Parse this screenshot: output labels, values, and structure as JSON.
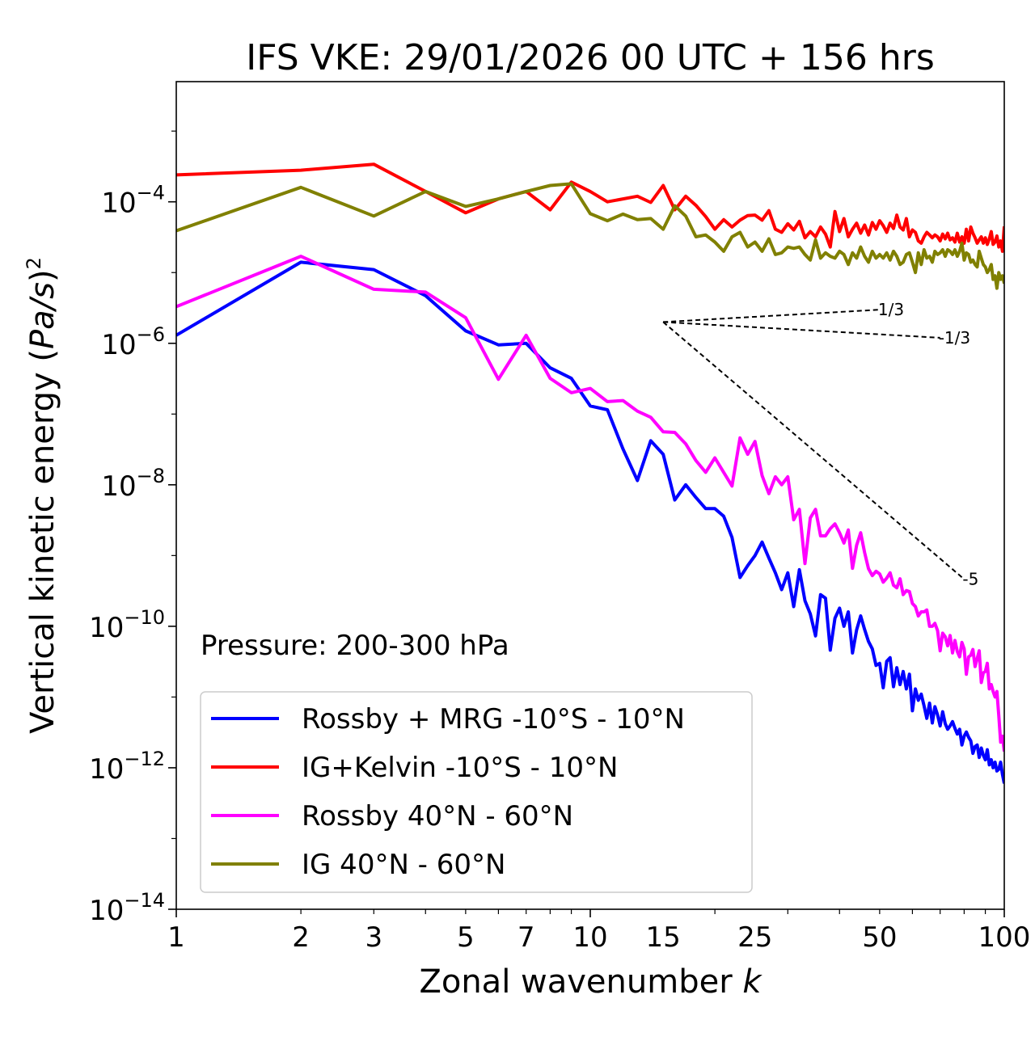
{
  "chart_data": {
    "type": "line",
    "title": "IFS VKE: 29/01/2026 00 UTC + 156 hrs",
    "xlabel_text": "Zonal wavenumber ",
    "xlabel_var": "k",
    "ylabel_text": "Vertical kinetic energy (",
    "ylabel_var": "Pa/s",
    "ylabel_close": ")",
    "ylabel_sup": "2",
    "xscale": "log",
    "yscale": "log",
    "xlim": [
      1,
      100
    ],
    "ylim": [
      1e-14,
      0.005
    ],
    "x_ticks": [
      {
        "value": 1,
        "label": "1"
      },
      {
        "value": 2,
        "label": "2"
      },
      {
        "value": 3,
        "label": "3"
      },
      {
        "value": 5,
        "label": "5"
      },
      {
        "value": 7,
        "label": "7"
      },
      {
        "value": 10,
        "label": "10"
      },
      {
        "value": 15,
        "label": "15"
      },
      {
        "value": 25,
        "label": "25"
      },
      {
        "value": 50,
        "label": "50"
      },
      {
        "value": 100,
        "label": "100"
      }
    ],
    "y_ticks": [
      {
        "exp": -4,
        "base": "10",
        "sup": "−4"
      },
      {
        "exp": -6,
        "base": "10",
        "sup": "−6"
      },
      {
        "exp": -8,
        "base": "10",
        "sup": "−8"
      },
      {
        "exp": -10,
        "base": "10",
        "sup": "−10"
      },
      {
        "exp": -12,
        "base": "10",
        "sup": "−12"
      },
      {
        "exp": -14,
        "base": "10",
        "sup": "−14"
      }
    ],
    "annotation": "Pressure: 200-300 hPa",
    "legend_position": "lower-left",
    "series": [
      {
        "name": "Rossby + MRG -10°S - 10°N",
        "color": "#0000ff",
        "x": [
          1,
          2,
          3,
          4,
          5,
          6,
          7,
          8,
          9,
          10,
          11,
          12,
          13,
          14,
          15,
          16,
          17,
          18,
          19,
          20,
          21,
          22,
          23,
          24,
          25,
          26,
          27,
          28,
          29,
          30,
          31,
          32,
          33,
          34,
          35,
          36,
          37,
          38,
          39,
          40,
          41,
          42,
          43,
          44,
          45,
          46,
          47,
          48,
          49,
          50,
          51,
          52,
          53,
          54,
          55,
          56,
          57,
          58,
          59,
          60,
          61,
          62,
          63,
          64,
          65,
          66,
          67,
          68,
          69,
          70,
          71,
          72,
          73,
          74,
          75,
          76,
          77,
          78,
          79,
          80,
          81,
          82,
          83,
          84,
          85,
          86,
          87,
          88,
          89,
          90,
          91,
          92,
          93,
          94,
          95,
          96,
          97,
          98,
          99,
          100
        ],
        "y": [
          1.3e-06,
          1.4e-05,
          1.1e-05,
          4.7e-06,
          1.5e-06,
          9.5e-07,
          1e-06,
          4.5e-07,
          3.2e-07,
          1.3e-07,
          1.15e-07,
          3.2e-08,
          1.15e-08,
          4.2e-08,
          2.7e-08,
          6.1e-09,
          1e-08,
          6.6e-09,
          4.6e-09,
          4.6e-09,
          3.6e-09,
          1.8e-09,
          4.9e-10,
          7.2e-10,
          1e-09,
          1.55e-09,
          9.2e-10,
          5.7e-10,
          3.3e-10,
          5.7e-10,
          1.9e-10,
          6.3e-10,
          2.3e-10,
          1.5e-10,
          7.3e-11,
          2.8e-10,
          2.5e-10,
          4.6e-11,
          1.3e-10,
          1.8e-10,
          1e-10,
          1.6e-10,
          4.2e-11,
          8.9e-11,
          1.4e-10,
          9e-11,
          6.1e-11,
          4.8e-11,
          2.8e-11,
          3e-11,
          1.35e-11,
          3.2e-11,
          3.6e-11,
          1.4e-11,
          2.6e-11,
          1.5e-11,
          2.3e-11,
          1.3e-11,
          2.1e-11,
          6.4e-12,
          1.3e-11,
          9e-12,
          1.1e-11,
          7.5e-12,
          5e-12,
          8.2e-12,
          4.3e-12,
          7.3e-12,
          5.6e-12,
          3.9e-12,
          6.2e-12,
          4.2e-12,
          3.5e-12,
          3.9e-12,
          4.5e-12,
          3.6e-12,
          3e-12,
          3.5e-12,
          2.1e-12,
          2.8e-12,
          3.2e-12,
          2.7e-12,
          2.4e-12,
          1.6e-12,
          2e-12,
          2.1e-12,
          1.4e-12,
          1.9e-12,
          1.5e-12,
          1.3e-12,
          1.8e-12,
          1.1e-12,
          1.3e-12,
          1e-12,
          1.2e-12,
          9e-13,
          9.5e-13,
          1.2e-12,
          8e-13,
          6e-13
        ]
      },
      {
        "name": "IG+Kelvin -10°S - 10°N",
        "color": "#ff0000",
        "x": [
          1,
          2,
          3,
          4,
          5,
          6,
          7,
          8,
          9,
          10,
          11,
          12,
          13,
          14,
          15,
          16,
          17,
          18,
          19,
          20,
          21,
          22,
          23,
          24,
          25,
          26,
          27,
          28,
          29,
          30,
          31,
          32,
          33,
          34,
          35,
          36,
          37,
          38,
          39,
          40,
          41,
          42,
          43,
          44,
          45,
          46,
          47,
          48,
          49,
          50,
          51,
          52,
          53,
          54,
          55,
          56,
          57,
          58,
          59,
          60,
          61,
          62,
          63,
          64,
          65,
          66,
          67,
          68,
          69,
          70,
          71,
          72,
          73,
          74,
          75,
          76,
          77,
          78,
          79,
          80,
          81,
          82,
          83,
          84,
          85,
          86,
          87,
          88,
          89,
          90,
          91,
          92,
          93,
          94,
          95,
          96,
          97,
          98,
          99,
          100
        ],
        "y": [
          0.00024,
          0.00028,
          0.00034,
          0.00014,
          7e-05,
          0.00011,
          0.00014,
          7.7e-05,
          0.00019,
          0.00014,
          0.0001,
          0.00011,
          0.00012,
          9.8e-05,
          0.00017,
          7.7e-05,
          0.00012,
          8.9e-05,
          6.2e-05,
          4.1e-05,
          5.6e-05,
          4.4e-05,
          5.5e-05,
          6.4e-05,
          6.5e-05,
          5.5e-05,
          7.5e-05,
          4.1e-05,
          3.7e-05,
          4.9e-05,
          4e-05,
          5.3e-05,
          3.1e-05,
          3.8e-05,
          3.2e-05,
          4.4e-05,
          3.5e-05,
          2.3e-05,
          7.3e-05,
          3.8e-05,
          5.8e-05,
          3.2e-05,
          4.1e-05,
          5e-05,
          3.6e-05,
          4.7e-05,
          3.4e-05,
          5.1e-05,
          4.1e-05,
          5.4e-05,
          4.6e-05,
          3.7e-05,
          5e-05,
          4.2e-05,
          6.5e-05,
          4.4e-05,
          4e-05,
          5.8e-05,
          3.2e-05,
          4e-05,
          3.7e-05,
          2.8e-05,
          2.6e-05,
          3.2e-05,
          3.7e-05,
          3.4e-05,
          3.1e-05,
          3.4e-05,
          3.2e-05,
          2.8e-05,
          3.5e-05,
          3e-05,
          3.6e-05,
          2.9e-05,
          3.1e-05,
          2.7e-05,
          3.6e-05,
          2.7e-05,
          3.2e-05,
          2.6e-05,
          4.1e-05,
          2.8e-05,
          4.4e-05,
          3.6e-05,
          3.1e-05,
          2.6e-05,
          2.9e-05,
          3.2e-05,
          2.6e-05,
          3.1e-05,
          2.5e-05,
          3e-05,
          3.8e-05,
          2.5e-05,
          2.7e-05,
          3.3e-05,
          2.3e-05,
          2.8e-05,
          2e-05,
          4.5e-05
        ]
      },
      {
        "name": "Rossby 40°N - 60°N",
        "color": "#ff00ff",
        "x": [
          1,
          2,
          3,
          4,
          5,
          6,
          7,
          8,
          9,
          10,
          11,
          12,
          13,
          14,
          15,
          16,
          17,
          18,
          19,
          20,
          21,
          22,
          23,
          24,
          25,
          26,
          27,
          28,
          29,
          30,
          31,
          32,
          33,
          34,
          35,
          36,
          37,
          38,
          39,
          40,
          41,
          42,
          43,
          44,
          45,
          46,
          47,
          48,
          49,
          50,
          51,
          52,
          53,
          54,
          55,
          56,
          57,
          58,
          59,
          60,
          61,
          62,
          63,
          64,
          65,
          66,
          67,
          68,
          69,
          70,
          71,
          72,
          73,
          74,
          75,
          76,
          77,
          78,
          79,
          80,
          81,
          82,
          83,
          84,
          85,
          86,
          87,
          88,
          89,
          90,
          91,
          92,
          93,
          94,
          95,
          96,
          97,
          98,
          99,
          100
        ],
        "y": [
          3.3e-06,
          1.7e-05,
          5.8e-06,
          5.3e-06,
          2.3e-06,
          3.1e-07,
          1.3e-06,
          3.2e-07,
          2e-07,
          2.3e-07,
          1.5e-07,
          1.55e-07,
          1.1e-07,
          9e-08,
          5.6e-08,
          5.5e-08,
          3.8e-08,
          2.2e-08,
          1.5e-08,
          2.4e-08,
          1.5e-08,
          9.6e-09,
          4.6e-08,
          2.7e-08,
          4.1e-08,
          1.35e-08,
          7.5e-09,
          1.3e-08,
          1e-08,
          1.3e-08,
          3.2e-09,
          4.5e-09,
          7.7e-10,
          3.4e-09,
          4.5e-09,
          1.9e-09,
          1.9e-09,
          2.4e-09,
          2.8e-09,
          2.1e-09,
          1.5e-09,
          2.3e-09,
          6.6e-10,
          1.4e-09,
          2.1e-09,
          1.1e-09,
          6.5e-10,
          5.2e-10,
          6e-10,
          5.5e-10,
          4.2e-10,
          4.8e-10,
          5.7e-10,
          3.8e-10,
          3.5e-10,
          4.7e-10,
          2.8e-10,
          3.2e-10,
          3.1e-10,
          2.1e-10,
          1.9e-10,
          1.4e-10,
          1.6e-10,
          1.6e-10,
          1.7e-10,
          1e-10,
          1e-10,
          1.1e-10,
          8.7e-11,
          4.5e-11,
          8e-11,
          7.1e-11,
          5.3e-11,
          7.4e-11,
          4.2e-11,
          6.3e-11,
          4.4e-11,
          3.7e-11,
          5.9e-11,
          4.8e-11,
          2.1e-11,
          3.7e-11,
          3.9e-11,
          4.7e-11,
          2.7e-11,
          3.5e-11,
          4.5e-11,
          1.6e-11,
          2.2e-11,
          2.3e-11,
          3e-11,
          1.3e-11,
          1.5e-11,
          1.2e-11,
          1e-11,
          1.2e-11,
          5.5e-12,
          2.3e-12,
          2.8e-12,
          1.7e-12
        ]
      },
      {
        "name": "IG 40°N - 60°N",
        "color": "#808000",
        "x": [
          1,
          2,
          3,
          4,
          5,
          6,
          7,
          8,
          9,
          10,
          11,
          12,
          13,
          14,
          15,
          16,
          17,
          18,
          19,
          20,
          21,
          22,
          23,
          24,
          25,
          26,
          27,
          28,
          29,
          30,
          31,
          32,
          33,
          34,
          35,
          36,
          37,
          38,
          39,
          40,
          41,
          42,
          43,
          44,
          45,
          46,
          47,
          48,
          49,
          50,
          51,
          52,
          53,
          54,
          55,
          56,
          57,
          58,
          59,
          60,
          61,
          62,
          63,
          64,
          65,
          66,
          67,
          68,
          69,
          70,
          71,
          72,
          73,
          74,
          75,
          76,
          77,
          78,
          79,
          80,
          81,
          82,
          83,
          84,
          85,
          86,
          87,
          88,
          89,
          90,
          91,
          92,
          93,
          94,
          95,
          96,
          97,
          98,
          99,
          100
        ],
        "y": [
          3.9e-05,
          0.00016,
          6.3e-05,
          0.00014,
          8.6e-05,
          0.00011,
          0.00014,
          0.00017,
          0.00018,
          6.8e-05,
          5.4e-05,
          6.7e-05,
          5.6e-05,
          5.8e-05,
          4.1e-05,
          8.8e-05,
          6.3e-05,
          3.2e-05,
          3.4e-05,
          2.7e-05,
          2e-05,
          3.2e-05,
          3.7e-05,
          2.3e-05,
          2.7e-05,
          2e-05,
          3e-05,
          1.8e-05,
          1.9e-05,
          2.3e-05,
          2.2e-05,
          2.3e-05,
          1.8e-05,
          1.5e-05,
          2.9e-05,
          1.6e-05,
          1.9e-05,
          1.7e-05,
          1.6e-05,
          2e-05,
          1.8e-05,
          1.3e-05,
          1.9e-05,
          1.6e-05,
          2.3e-05,
          1.7e-05,
          1.4e-05,
          2e-05,
          1.6e-05,
          1.8e-05,
          1.6e-05,
          1.9e-05,
          1.5e-05,
          2e-05,
          1.7e-05,
          1.3e-05,
          1.4e-05,
          1.8e-05,
          1.9e-05,
          1.4e-05,
          1e-05,
          1.9e-05,
          1.3e-05,
          2.1e-05,
          1.6e-05,
          1.7e-05,
          1.4e-05,
          2e-05,
          1.8e-05,
          1.9e-05,
          2.1e-05,
          1.7e-05,
          2.1e-05,
          2e-05,
          1.8e-05,
          2.1e-05,
          1.7e-05,
          2e-05,
          2.6e-05,
          1.5e-05,
          1.9e-05,
          1.8e-05,
          1.4e-05,
          1.5e-05,
          1.3e-05,
          1.2e-05,
          2e-05,
          1.6e-05,
          1.3e-05,
          1.2e-05,
          1e-05,
          1.1e-05,
          1.3e-05,
          8e-06,
          9e-06,
          6e-06,
          1e-05,
          8e-06,
          9e-06,
          7e-06
        ]
      }
    ],
    "reference_slopes": [
      {
        "label": "1/3",
        "slope": 0.3333,
        "x0": 15,
        "y0": 2e-06,
        "x1": 50
      },
      {
        "label": "-1/3",
        "slope": -0.3333,
        "x0": 15,
        "y0": 2e-06,
        "x1": 70
      },
      {
        "label": "-5",
        "slope": -5,
        "x0": 15,
        "y0": 2e-06,
        "x1": 80
      }
    ]
  }
}
